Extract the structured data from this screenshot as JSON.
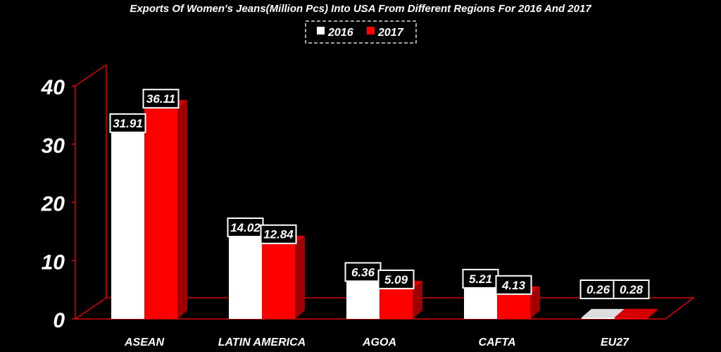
{
  "chart_data": {
    "type": "bar",
    "title": "Exports Of Women's Jeans(Million Pcs) Into USA From Different Regions For 2016 And 2017",
    "categories": [
      "ASEAN",
      "LATIN AMERICA",
      "AGOA",
      "CAFTA",
      "EU27"
    ],
    "series": [
      {
        "name": "2016",
        "values": [
          31.91,
          14.02,
          6.36,
          5.21,
          0.26
        ],
        "color": "#ffffff"
      },
      {
        "name": "2017",
        "values": [
          36.11,
          12.84,
          5.09,
          4.13,
          0.28
        ],
        "color": "#ff0000"
      }
    ],
    "value_labels": [
      [
        "31.91",
        "14.02",
        "6.36",
        "5.21",
        "0.26"
      ],
      [
        "36.11",
        "12.84",
        "5.09",
        "4.13",
        "0.28"
      ]
    ],
    "yticks": [
      "0",
      "10",
      "20",
      "30",
      "40"
    ],
    "ylim": [
      0,
      40
    ],
    "xlabel": "",
    "ylabel": "",
    "legend": "top-center",
    "grid": false,
    "style": "3d-clustered-column",
    "colors": {
      "background": "#000000",
      "axis": "#ff0000",
      "series2016": "#ffffff",
      "series2017": "#ff0000",
      "side2017": "#a00000"
    }
  }
}
